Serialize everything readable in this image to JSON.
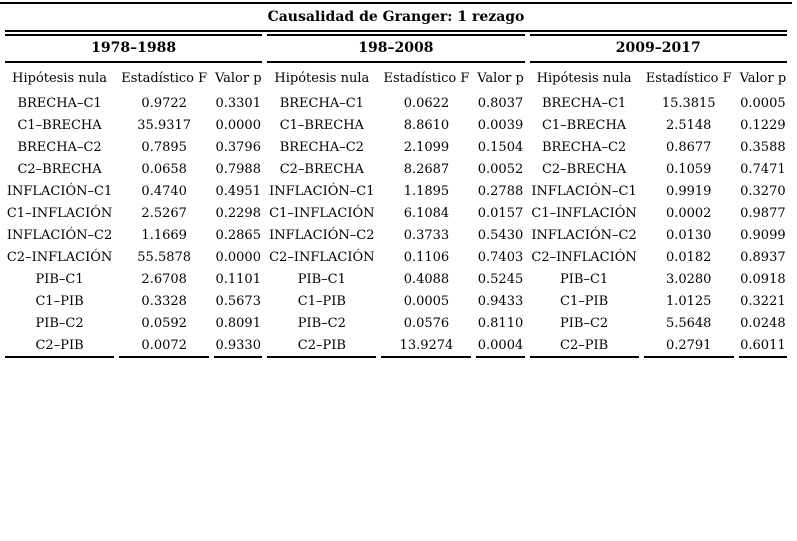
{
  "title": "Causalidad de Granger: 1 rezago",
  "columns": [
    "Hipótesis nula",
    "Estadístico F",
    "Valor p"
  ],
  "groups": [
    {
      "period": "1978–1988",
      "rows": [
        [
          "BRECHA–C1",
          "0.9722",
          "0.3301"
        ],
        [
          "C1–BRECHA",
          "35.9317",
          "0.0000"
        ],
        [
          "BRECHA–C2",
          "0.7895",
          "0.3796"
        ],
        [
          "C2–BRECHA",
          "0.0658",
          "0.7988"
        ],
        [
          "INFLACIÓN–C1",
          "0.4740",
          "0.4951"
        ],
        [
          "C1–INFLACIÓN",
          "2.5267",
          "0.2298"
        ],
        [
          "INFLACIÓN–C2",
          "1.1669",
          "0.2865"
        ],
        [
          "C2–INFLACIÓN",
          "55.5878",
          "0.0000"
        ],
        [
          "PIB–C1",
          "2.6708",
          "0.1101"
        ],
        [
          "C1–PIB",
          "0.3328",
          "0.5673"
        ],
        [
          "PIB–C2",
          "0.0592",
          "0.8091"
        ],
        [
          "C2–PIB",
          "0.0072",
          "0.9330"
        ]
      ]
    },
    {
      "period": "198–2008",
      "rows": [
        [
          "BRECHA–C1",
          "0.0622",
          "0.8037"
        ],
        [
          "C1–BRECHA",
          "8.8610",
          "0.0039"
        ],
        [
          "BRECHA–C2",
          "2.1099",
          "0.1504"
        ],
        [
          "C2–BRECHA",
          "8.2687",
          "0.0052"
        ],
        [
          "INFLACIÓN–C1",
          "1.1895",
          "0.2788"
        ],
        [
          "C1–INFLACIÓN",
          "6.1084",
          "0.0157"
        ],
        [
          "INFLACIÓN–C2",
          "0.3733",
          "0.5430"
        ],
        [
          "C2–INFLACIÓN",
          "0.1106",
          "0.7403"
        ],
        [
          "PIB–C1",
          "0.4088",
          "0.5245"
        ],
        [
          "C1–PIB",
          "0.0005",
          "0.9433"
        ],
        [
          "PIB–C2",
          "0.0576",
          "0.8110"
        ],
        [
          "C2–PIB",
          "13.9274",
          "0.0004"
        ]
      ]
    },
    {
      "period": "2009–2017",
      "rows": [
        [
          "BRECHA–C1",
          "15.3815",
          "0.0005"
        ],
        [
          "C1–BRECHA",
          "2.5148",
          "0.1229"
        ],
        [
          "BRECHA–C2",
          "0.8677",
          "0.3588"
        ],
        [
          "C2–BRECHA",
          "0.1059",
          "0.7471"
        ],
        [
          "INFLACIÓN–C1",
          "0.9919",
          "0.3270"
        ],
        [
          "C1–INFLACIÓN",
          "0.0002",
          "0.9877"
        ],
        [
          "INFLACIÓN–C2",
          "0.0130",
          "0.9099"
        ],
        [
          "C2–INFLACIÓN",
          "0.0182",
          "0.8937"
        ],
        [
          "PIB–C1",
          "3.0280",
          "0.0918"
        ],
        [
          "C1–PIB",
          "1.0125",
          "0.3221"
        ],
        [
          "PIB–C2",
          "5.5648",
          "0.0248"
        ],
        [
          "C2–PIB",
          "0.2791",
          "0.6011"
        ]
      ]
    }
  ]
}
